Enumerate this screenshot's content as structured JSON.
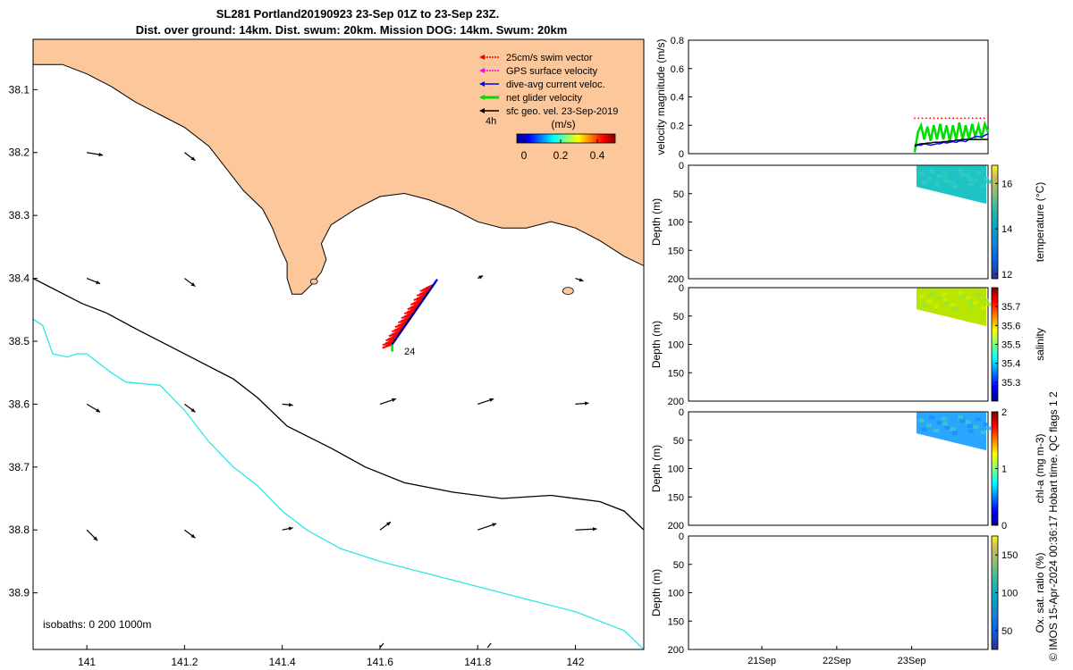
{
  "title": {
    "line1": "SL281 Portland20190923 23-Sep 01Z to 23-Sep 23Z.",
    "line2": "Dist. over ground: 14km. Dist. swum: 20km. Mission DOG: 14km. Swum: 20km"
  },
  "colors": {
    "land": "#fcc89b",
    "isobath_0": "#000000",
    "isobath_200": "#000000",
    "isobath_1000": "#2ee6e6",
    "swim": "#ff0000",
    "gps": "#ff00ff",
    "dive_avg": "#0000ff",
    "net": "#00dd00",
    "sfc_geo": "#000000"
  },
  "legend": {
    "items": [
      {
        "label": "25cm/s swim vector",
        "color": "#ff0000"
      },
      {
        "label": "GPS surface velocity",
        "color": "#ff00ff"
      },
      {
        "label": "dive-avg current veloc.",
        "color": "#0000ff"
      },
      {
        "label": "net glider velocity",
        "color": "#00dd00"
      },
      {
        "label": "sfc geo. vel. 23-Sep-2019",
        "color": "#000000"
      }
    ],
    "time_label": "4h",
    "colorbar_unit": "(m/s)",
    "colorbar_ticks": [
      "0",
      "0.2",
      "0.4"
    ]
  },
  "isobath_label": "isobaths: 0   200  1000m",
  "track_label": "24",
  "right_caption": "© IMOS 15-Apr-2024 00:36:17 Hobart time. QC flags 1  2",
  "chart_data": [
    {
      "type": "scatter",
      "name": "map",
      "xlim": [
        140.89,
        142.14
      ],
      "ylim": [
        38.99,
        38.02
      ],
      "xticks": [
        "141",
        "141.2",
        "141.4",
        "141.6",
        "141.8",
        "142"
      ],
      "xtick_values": [
        141,
        141.2,
        141.4,
        141.6,
        141.8,
        142
      ],
      "yticks": [
        "38.1",
        "38.2",
        "38.3",
        "38.4",
        "38.5",
        "38.6",
        "38.7",
        "38.8",
        "38.9"
      ],
      "ytick_values": [
        38.1,
        38.2,
        38.3,
        38.4,
        38.5,
        38.6,
        38.7,
        38.8,
        38.9
      ],
      "coast": [
        [
          140.89,
          38.02
        ],
        [
          140.89,
          38.06
        ],
        [
          140.95,
          38.06
        ],
        [
          141.0,
          38.075
        ],
        [
          141.05,
          38.095
        ],
        [
          141.1,
          38.12
        ],
        [
          141.15,
          38.14
        ],
        [
          141.2,
          38.16
        ],
        [
          141.25,
          38.19
        ],
        [
          141.28,
          38.22
        ],
        [
          141.32,
          38.26
        ],
        [
          141.36,
          38.29
        ],
        [
          141.38,
          38.32
        ],
        [
          141.395,
          38.35
        ],
        [
          141.41,
          38.375
        ],
        [
          141.41,
          38.4
        ],
        [
          141.42,
          38.425
        ],
        [
          141.44,
          38.425
        ],
        [
          141.46,
          38.41
        ],
        [
          141.48,
          38.39
        ],
        [
          141.49,
          38.37
        ],
        [
          141.48,
          38.345
        ],
        [
          141.5,
          38.315
        ],
        [
          141.55,
          38.29
        ],
        [
          141.6,
          38.27
        ],
        [
          141.65,
          38.265
        ],
        [
          141.7,
          38.275
        ],
        [
          141.75,
          38.29
        ],
        [
          141.8,
          38.31
        ],
        [
          141.85,
          38.32
        ],
        [
          141.9,
          38.32
        ],
        [
          141.95,
          38.31
        ],
        [
          142.0,
          38.32
        ],
        [
          142.05,
          38.34
        ],
        [
          142.1,
          38.365
        ],
        [
          142.14,
          38.38
        ],
        [
          142.14,
          38.02
        ]
      ],
      "isobath_200": [
        [
          140.89,
          38.4
        ],
        [
          140.99,
          38.44
        ],
        [
          141.04,
          38.455
        ],
        [
          141.1,
          38.48
        ],
        [
          141.2,
          38.52
        ],
        [
          141.3,
          38.56
        ],
        [
          141.35,
          38.59
        ],
        [
          141.41,
          38.635
        ],
        [
          141.5,
          38.67
        ],
        [
          141.57,
          38.7
        ],
        [
          141.65,
          38.725
        ],
        [
          141.75,
          38.74
        ],
        [
          141.85,
          38.75
        ],
        [
          141.95,
          38.745
        ],
        [
          142.05,
          38.755
        ],
        [
          142.1,
          38.77
        ],
        [
          142.14,
          38.8
        ]
      ],
      "isobath_1000": [
        [
          140.89,
          38.465
        ],
        [
          140.91,
          38.475
        ],
        [
          140.93,
          38.52
        ],
        [
          140.96,
          38.525
        ],
        [
          140.98,
          38.52
        ],
        [
          141.0,
          38.52
        ],
        [
          141.05,
          38.55
        ],
        [
          141.08,
          38.565
        ],
        [
          141.15,
          38.57
        ],
        [
          141.2,
          38.61
        ],
        [
          141.25,
          38.66
        ],
        [
          141.3,
          38.7
        ],
        [
          141.35,
          38.73
        ],
        [
          141.4,
          38.77
        ],
        [
          141.45,
          38.8
        ],
        [
          141.52,
          38.83
        ],
        [
          141.6,
          38.85
        ],
        [
          141.7,
          38.87
        ],
        [
          141.8,
          38.89
        ],
        [
          141.9,
          38.91
        ],
        [
          142.0,
          38.93
        ],
        [
          142.1,
          38.96
        ],
        [
          142.14,
          38.99
        ]
      ],
      "sfc_geo_vectors": [
        {
          "lon": 141.0,
          "lat": 38.2,
          "u": 0.03,
          "v": 0.005
        },
        {
          "lon": 141.2,
          "lat": 38.2,
          "u": 0.02,
          "v": 0.015
        },
        {
          "lon": 141.0,
          "lat": 38.4,
          "u": 0.025,
          "v": 0.01
        },
        {
          "lon": 141.2,
          "lat": 38.4,
          "u": 0.02,
          "v": 0.015
        },
        {
          "lon": 141.8,
          "lat": 38.4,
          "u": 0.01,
          "v": -0.005
        },
        {
          "lon": 142.0,
          "lat": 38.4,
          "u": 0.015,
          "v": 0.005
        },
        {
          "lon": 141.0,
          "lat": 38.6,
          "u": 0.025,
          "v": 0.015
        },
        {
          "lon": 141.2,
          "lat": 38.6,
          "u": 0.02,
          "v": 0.015
        },
        {
          "lon": 141.4,
          "lat": 38.6,
          "u": 0.02,
          "v": 0.002
        },
        {
          "lon": 141.6,
          "lat": 38.6,
          "u": 0.03,
          "v": -0.01
        },
        {
          "lon": 141.8,
          "lat": 38.6,
          "u": 0.03,
          "v": -0.01
        },
        {
          "lon": 142.0,
          "lat": 38.6,
          "u": 0.025,
          "v": -0.002
        },
        {
          "lon": 141.0,
          "lat": 38.8,
          "u": 0.02,
          "v": 0.02
        },
        {
          "lon": 141.2,
          "lat": 38.8,
          "u": 0.02,
          "v": 0.015
        },
        {
          "lon": 141.4,
          "lat": 38.8,
          "u": 0.02,
          "v": -0.004
        },
        {
          "lon": 141.6,
          "lat": 38.8,
          "u": 0.02,
          "v": -0.015
        },
        {
          "lon": 141.8,
          "lat": 38.8,
          "u": 0.035,
          "v": -0.012
        },
        {
          "lon": 142.0,
          "lat": 38.8,
          "u": 0.04,
          "v": -0.002
        }
      ],
      "glider_track": [
        [
          141.71,
          38.41
        ],
        [
          141.625,
          38.505
        ]
      ]
    },
    {
      "type": "line",
      "name": "velocity",
      "ylabel": "velocity magnitude (m/s)",
      "ylim": [
        0,
        0.8
      ],
      "yticks": [
        "0",
        "0.2",
        "0.4",
        "0.6",
        "0.8"
      ],
      "ytick_values": [
        0,
        0.2,
        0.4,
        0.6,
        0.8
      ],
      "net_velocity": [
        0.01,
        0.15,
        0.2,
        0.1,
        0.19,
        0.09,
        0.2,
        0.1,
        0.21,
        0.1,
        0.2,
        0.09,
        0.2,
        0.1,
        0.22,
        0.1,
        0.2,
        0.1,
        0.21,
        0.12,
        0.2,
        0.11,
        0.21,
        0.15
      ],
      "dive_avg": [
        0.05,
        0.06,
        0.06,
        0.07,
        0.065,
        0.06,
        0.065,
        0.07,
        0.07,
        0.08,
        0.075,
        0.08,
        0.085,
        0.08,
        0.09,
        0.09,
        0.085,
        0.1,
        0.11,
        0.12,
        0.12,
        0.115,
        0.13,
        0.14
      ],
      "sfc_geo": [
        0.06,
        0.065,
        0.07,
        0.07,
        0.075,
        0.075,
        0.08,
        0.08,
        0.08,
        0.085,
        0.085,
        0.09,
        0.09,
        0.095,
        0.095,
        0.1,
        0.1,
        0.1,
        0.1,
        0.1,
        0.1,
        0.1,
        0.1,
        0.1
      ]
    },
    {
      "type": "heatmap",
      "name": "temperature",
      "ylabel": "Depth (m)",
      "clabel": "temperature (°C)",
      "ylim": [
        0,
        200
      ],
      "clim": [
        11.8,
        16.8
      ],
      "cticks": [
        "12",
        "14",
        "16"
      ],
      "ctick_values": [
        12,
        14,
        16
      ],
      "field_mean": 14.5
    },
    {
      "type": "heatmap",
      "name": "salinity",
      "ylabel": "Depth (m)",
      "clabel": "salinity",
      "ylim": [
        0,
        200
      ],
      "clim": [
        35.2,
        35.8
      ],
      "cticks": [
        "35.3",
        "35.4",
        "35.5",
        "35.6",
        "35.7"
      ],
      "ctick_values": [
        35.3,
        35.4,
        35.5,
        35.6,
        35.7
      ],
      "field_mean": 35.58
    },
    {
      "type": "heatmap",
      "name": "chla",
      "ylabel": "Depth (m)",
      "clabel": "chl-a (mg m-3)",
      "ylim": [
        0,
        200
      ],
      "clim": [
        0,
        2
      ],
      "cticks": [
        "0",
        "1",
        "2"
      ],
      "ctick_values": [
        0,
        1,
        2
      ],
      "field_mean": 0.75
    },
    {
      "type": "heatmap",
      "name": "oxsat",
      "ylabel": "Depth (m)",
      "clabel": "Ox. sat. ratio (%)",
      "ylim": [
        0,
        200
      ],
      "clim": [
        25,
        175
      ],
      "cticks": [
        "50",
        "100",
        "150"
      ],
      "ctick_values": [
        50,
        100,
        150
      ]
    }
  ],
  "depth_ticks": [
    "0",
    "50",
    "100",
    "150",
    "200"
  ],
  "depth_tick_values": [
    0,
    50,
    100,
    150,
    200
  ],
  "time_ticks": [
    "21Sep",
    "22Sep",
    "23Sep"
  ]
}
